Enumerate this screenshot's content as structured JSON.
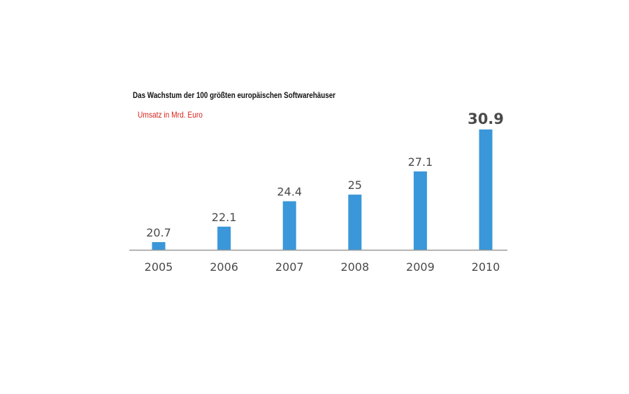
{
  "chart_data": {
    "type": "bar",
    "title": "Das Wachstum der 100 größten europäischen Softwarehäuser",
    "subtitle": "Umsatz in Mrd. Euro",
    "categories": [
      "2005",
      "2006",
      "2007",
      "2008",
      "2009",
      "2010"
    ],
    "values": [
      20.7,
      22.1,
      24.4,
      25,
      27.1,
      30.9
    ],
    "value_labels": [
      "20.7",
      "22.1",
      "24.4",
      "25",
      "27.1",
      "30.9"
    ],
    "highlight_index": 5,
    "ylim": [
      20,
      31.5
    ],
    "grid": false,
    "legend": "none",
    "xlabel": "",
    "ylabel": "",
    "colors": {
      "bar": "#3a97d9",
      "highlight_label": "#e8892d",
      "label": "#4a4a4a",
      "axis": "#999999",
      "title": "#111111",
      "subtitle": "#d8241c"
    }
  }
}
